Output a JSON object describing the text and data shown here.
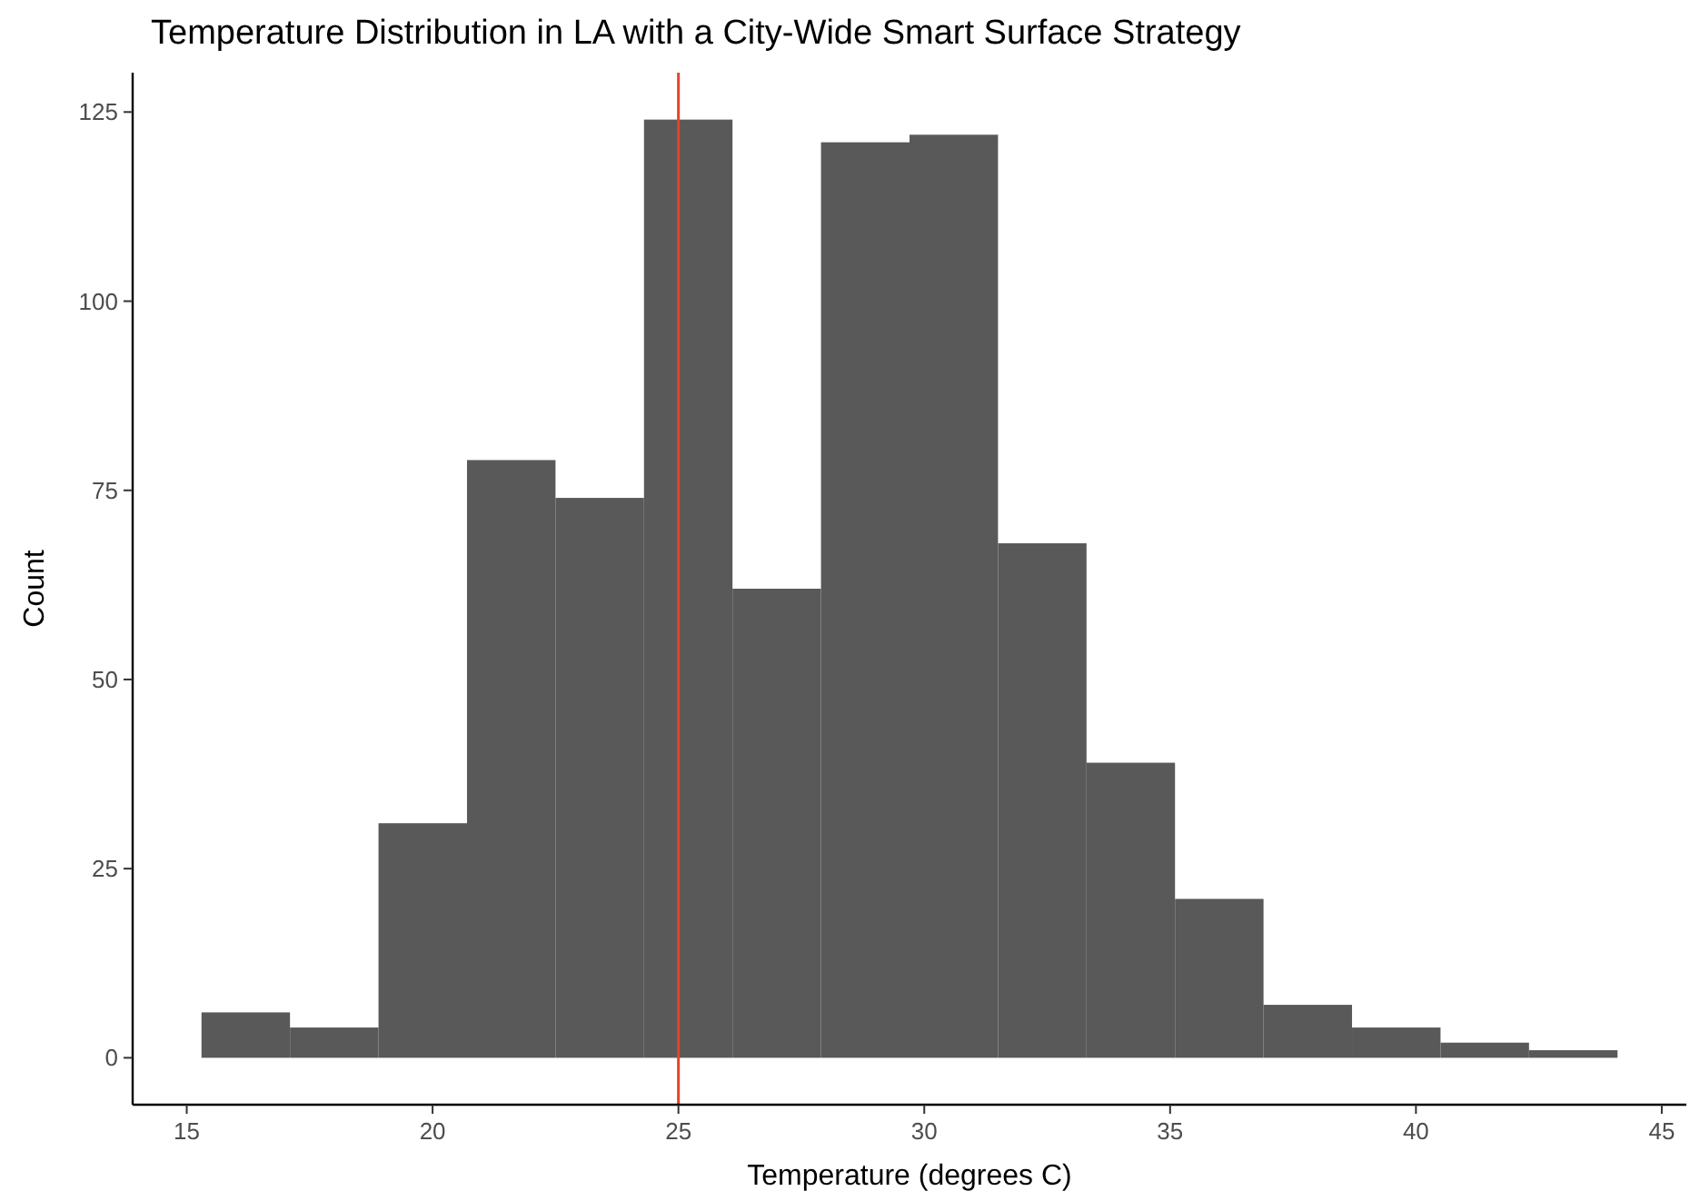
{
  "chart_data": {
    "type": "histogram",
    "title": "Temperature Distribution in LA with a City-Wide Smart Surface Strategy",
    "xlabel": "Temperature (degrees C)",
    "ylabel": "Count",
    "bins": [
      15.3,
      17.1,
      18.9,
      20.7,
      22.5,
      24.3,
      26.1,
      27.9,
      29.7,
      31.5,
      33.3,
      35.1,
      36.9,
      38.7,
      40.5,
      42.3,
      44.1
    ],
    "values": [
      6,
      4,
      31,
      79,
      74,
      124,
      62,
      121,
      122,
      68,
      39,
      21,
      7,
      4,
      2,
      1
    ],
    "color": "#595959",
    "xlim": [
      13.9,
      45.5
    ],
    "xticks": [
      15,
      20,
      25,
      30,
      35,
      40,
      45
    ],
    "ylim": [
      -6.2,
      130.2
    ],
    "yticks": [
      0,
      25,
      50,
      75,
      100,
      125
    ],
    "grid": false,
    "ref_lines": [
      {
        "axis": "x",
        "value": 25,
        "color": "#e8412c"
      }
    ]
  }
}
